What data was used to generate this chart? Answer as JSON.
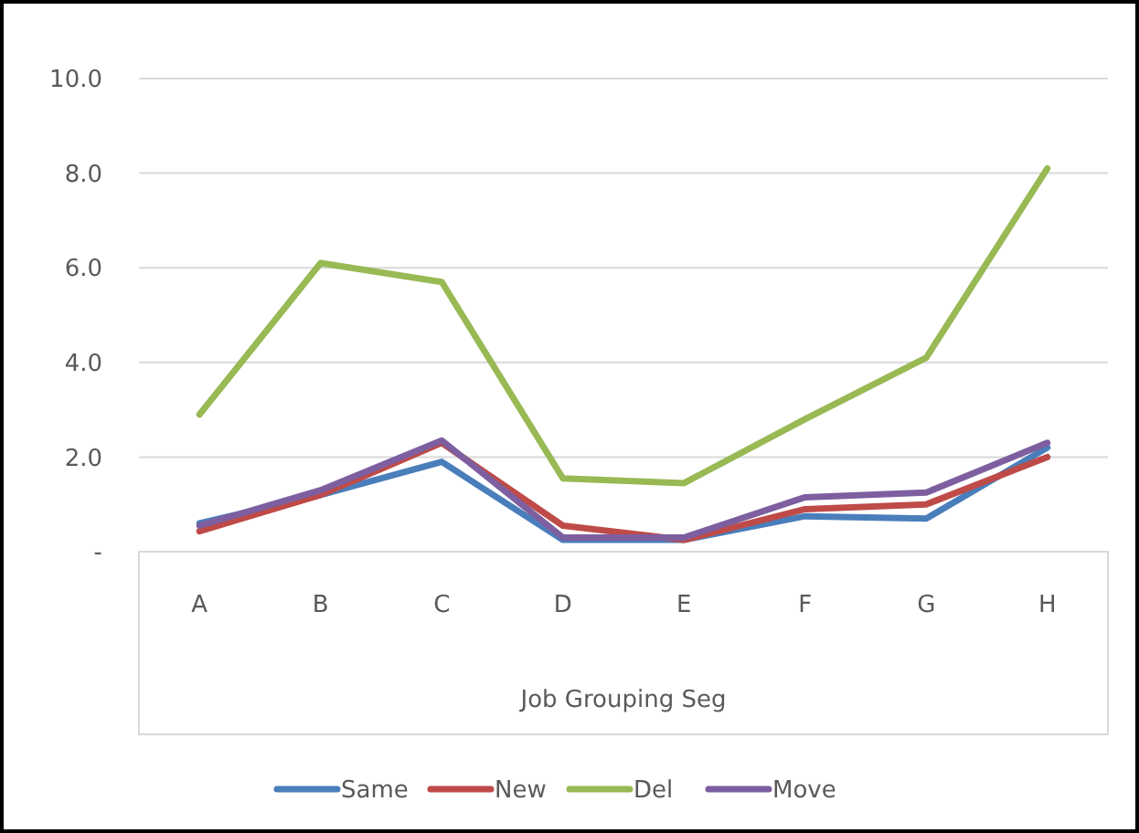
{
  "chart_data": {
    "type": "line",
    "xlabel": "Job Grouping Seg",
    "categories": [
      "A",
      "B",
      "C",
      "D",
      "E",
      "F",
      "G",
      "H"
    ],
    "series": [
      {
        "name": "Same",
        "color": "#4a7ebb",
        "values": [
          0.6,
          1.2,
          1.9,
          0.25,
          0.25,
          0.75,
          0.7,
          2.2
        ]
      },
      {
        "name": "New",
        "color": "#be4b48",
        "values": [
          0.43,
          1.2,
          2.3,
          0.55,
          0.25,
          0.9,
          1.0,
          2.0
        ]
      },
      {
        "name": "Del",
        "color": "#98b954",
        "values": [
          2.9,
          6.1,
          5.7,
          1.55,
          1.45,
          2.8,
          4.1,
          8.1
        ]
      },
      {
        "name": "Move",
        "color": "#7d5fa0",
        "values": [
          0.55,
          1.3,
          2.35,
          0.3,
          0.3,
          1.15,
          1.25,
          2.3
        ]
      }
    ],
    "ylim": [
      0,
      10
    ],
    "yticks": [
      {
        "value": 0,
        "label": "-"
      },
      {
        "value": 2,
        "label": "2.0"
      },
      {
        "value": 4,
        "label": "4.0"
      },
      {
        "value": 6,
        "label": "6.0"
      },
      {
        "value": 8,
        "label": "8.0"
      },
      {
        "value": 10,
        "label": "10.0"
      }
    ],
    "grid": "y",
    "legend": "bottom",
    "marker": "none",
    "line_style": "solid"
  }
}
